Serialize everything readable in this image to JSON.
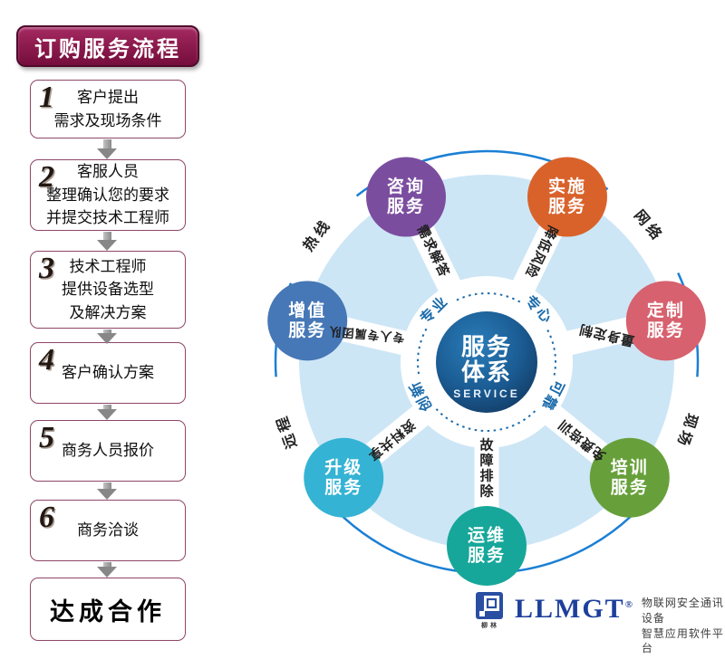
{
  "flow": {
    "title": "订购服务流程",
    "steps": [
      {
        "num": "1",
        "lines": [
          "客户提出",
          "需求及现场条件"
        ]
      },
      {
        "num": "2",
        "lines": [
          "客服人员",
          "整理确认您的要求",
          "并提交技术工程师"
        ]
      },
      {
        "num": "3",
        "lines": [
          "技术工程师",
          "提供设备选型",
          "及解决方案"
        ]
      },
      {
        "num": "4",
        "lines": [
          "客户确认方案"
        ]
      },
      {
        "num": "5",
        "lines": [
          "商务人员报价"
        ]
      },
      {
        "num": "6",
        "lines": [
          "商务洽谈"
        ]
      }
    ],
    "result": "达成合作"
  },
  "wheel": {
    "center": {
      "title_line1": "服务",
      "title_line2": "体系",
      "subtitle": "SERVICE"
    },
    "inner_words": [
      {
        "text": "专业",
        "angle": 135
      },
      {
        "text": "专心",
        "angle": 45
      },
      {
        "text": "创新",
        "angle": 207
      },
      {
        "text": "可靠",
        "angle": 333
      }
    ],
    "outer_words": [
      {
        "text": "热线",
        "angle": 143
      },
      {
        "text": "网络",
        "angle": 40
      },
      {
        "text": "远程",
        "angle": 199
      },
      {
        "text": "现场",
        "angle": 341
      }
    ],
    "satellites": [
      {
        "name": "咨询服务",
        "lines": [
          "咨询",
          "服务"
        ],
        "color": "#7b4d9f",
        "angle": 116,
        "spoke_text": "需求解答",
        "spoke_rot": 64
      },
      {
        "name": "实施服务",
        "lines": [
          "实施",
          "服务"
        ],
        "color": "#d9622b",
        "angle": 64,
        "spoke_text": "降低风险",
        "spoke_rot": 116
      },
      {
        "name": "定制服务",
        "lines": [
          "定制",
          "服务"
        ],
        "color": "#d7616e",
        "angle": 13,
        "spoke_text": "量身定制",
        "spoke_rot": 193
      },
      {
        "name": "增值服务",
        "lines": [
          "增值",
          "服务"
        ],
        "color": "#4677b6",
        "angle": 167,
        "spoke_text": "专人专属团队",
        "spoke_rot": 185,
        "spoke_font": 13
      },
      {
        "name": "升级服务",
        "lines": [
          "升级",
          "服务"
        ],
        "color": "#35b3d4",
        "angle": 219,
        "spoke_text": "资料共享",
        "spoke_rot": 141
      },
      {
        "name": "运维服务",
        "lines": [
          "运维",
          "服务"
        ],
        "color": "#16a79a",
        "angle": 270,
        "spoke_text": "故障排除",
        "vertical": true
      },
      {
        "name": "培训服务",
        "lines": [
          "培训",
          "服务"
        ],
        "color": "#67a03a",
        "angle": 321,
        "spoke_text": "免费培训",
        "spoke_rot": 219
      }
    ],
    "colors": {
      "outer_ring": "#1b7fd4",
      "wheel_fill": "#cde6f6",
      "dotted_ring": "#1c6cab",
      "inner_word": "#1c6cab",
      "outer_word": "#222222",
      "spoke_text": "#1f1f1f",
      "center_light": "#2a7db8",
      "center_mid": "#1b5c94",
      "center_dark": "#11375e"
    }
  },
  "logo": {
    "brand": "LLMGT",
    "reg_mark": "®",
    "icon_caption": "柳林",
    "tagline_line1": "物联网安全通讯设备",
    "tagline_line2": "智慧应用软件平台"
  }
}
